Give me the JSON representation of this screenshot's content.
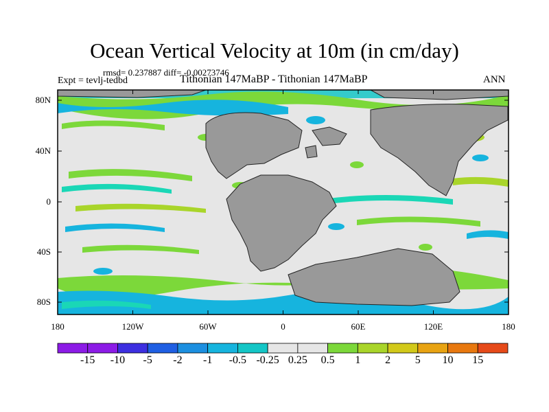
{
  "title": "Ocean Vertical Velocity at 10m (in cm/day)",
  "stats": "rmsd= 0.237887 diff= -0.00273746",
  "expt": "Expt = tevlj-tedbd",
  "subtitle": "Tithonian 147MaBP - Tithonian 147MaBP",
  "season": "ANN",
  "lat_labels": [
    "80N",
    "40N",
    "0",
    "40S",
    "80S"
  ],
  "lon_labels": [
    "180",
    "120W",
    "60W",
    "0",
    "60E",
    "120E",
    "180"
  ],
  "colorbar": {
    "labels": [
      "-15",
      "-10",
      "-5",
      "-2",
      "-1",
      "-0.5",
      "-0.25",
      "0.25",
      "0.5",
      "1",
      "2",
      "5",
      "10",
      "15"
    ],
    "colors": [
      "#8c1be6",
      "#3d2fe0",
      "#1f5fe3",
      "#1c8fe0",
      "#16b4de",
      "#14c6c6",
      "#1ad7b6",
      "#e6e6e6",
      "#7cd83a",
      "#a9d52a",
      "#d2c91a",
      "#e8a312",
      "#e8780f",
      "#e64a19"
    ]
  },
  "palette": {
    "land": "#999999",
    "ocean_neutral": "#e6e6e6",
    "pos_weak": "#7cd83a",
    "pos_mid": "#a9d52a",
    "neg_weak": "#1ad7b6",
    "neg_mid": "#16b4de"
  }
}
